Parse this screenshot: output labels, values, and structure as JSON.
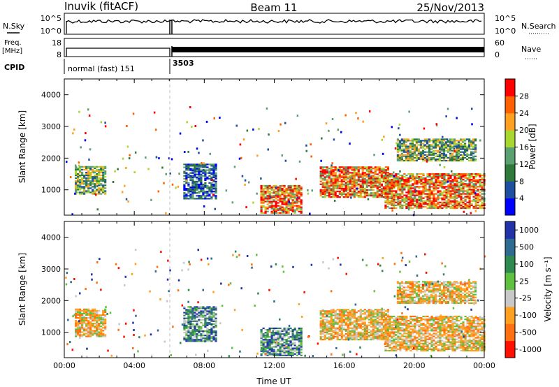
{
  "header": {
    "station": "Inuvik (fitACF)",
    "beam": "Beam 11",
    "date": "25/Nov/2013"
  },
  "top_panels": {
    "sky_label": "N.Sky",
    "search_label": "N.Search",
    "sky_ticks": [
      "10^5",
      "10^0"
    ],
    "search_ticks": [
      "10^5",
      "10^0"
    ],
    "freq_label": "Freq.",
    "freq_unit": "[MHz]",
    "freq_ticks": [
      "18",
      "8"
    ],
    "nave_label": "Nave",
    "nave_ticks": [
      "60",
      "0"
    ],
    "cpid_label": "CPID",
    "cpid_entries": [
      {
        "text": "normal (fast) 151",
        "start_hour": 0.0
      },
      {
        "text": "3503",
        "start_hour": 6.0
      }
    ]
  },
  "chart_data": [
    {
      "type": "heatmap",
      "name": "power",
      "ylabel": "Slant Range [km]",
      "ylim": [
        200,
        4500
      ],
      "yticks": [
        "1000",
        "2000",
        "3000",
        "4000"
      ],
      "colorbar": {
        "label": "Power [dB]",
        "ticks": [
          "4",
          "8",
          "12",
          "16",
          "20",
          "24",
          "28"
        ],
        "colors": [
          "#0000ff",
          "#1f4fa0",
          "#2f7a3a",
          "#5aa070",
          "#a8d830",
          "#ffa020",
          "#ff6000",
          "#ff0000"
        ]
      },
      "echo_regions": [
        {
          "t0": 0.6,
          "t1": 2.4,
          "r0": 850,
          "r1": 1750,
          "level": "mid"
        },
        {
          "t0": 6.8,
          "t1": 8.7,
          "r0": 700,
          "r1": 1800,
          "level": "low"
        },
        {
          "t0": 11.2,
          "t1": 13.5,
          "r0": 250,
          "r1": 1150,
          "level": "high"
        },
        {
          "t0": 14.6,
          "t1": 18.5,
          "r0": 750,
          "r1": 1700,
          "level": "high"
        },
        {
          "t0": 18.3,
          "t1": 24.0,
          "r0": 400,
          "r1": 1500,
          "level": "high"
        },
        {
          "t0": 19.0,
          "t1": 23.5,
          "r0": 1900,
          "r1": 2600,
          "level": "mid"
        }
      ]
    },
    {
      "type": "heatmap",
      "name": "velocity",
      "xlabel": "Time UT",
      "ylabel": "Slant Range [km]",
      "xlim": [
        0,
        24
      ],
      "xticks": [
        "00:00",
        "04:00",
        "08:00",
        "12:00",
        "16:00",
        "20:00",
        "00:00"
      ],
      "ylim": [
        200,
        4500
      ],
      "yticks": [
        "1000",
        "2000",
        "3000",
        "4000"
      ],
      "colorbar": {
        "label": "Velocity [m s⁻¹]",
        "ticks": [
          "1000",
          "500",
          "100",
          "25",
          "-25",
          "-100",
          "-500",
          "-1000"
        ],
        "colors": [
          "#2233aa",
          "#2f6a90",
          "#2f8a50",
          "#60c040",
          "#c8c8c8",
          "#ffa020",
          "#ff7010",
          "#ff1000"
        ]
      },
      "echo_regions": [
        {
          "t0": 0.6,
          "t1": 2.4,
          "r0": 850,
          "r1": 1750,
          "level": "neg"
        },
        {
          "t0": 6.8,
          "t1": 8.7,
          "r0": 700,
          "r1": 1800,
          "level": "pos"
        },
        {
          "t0": 11.2,
          "t1": 13.5,
          "r0": 250,
          "r1": 1150,
          "level": "pos"
        },
        {
          "t0": 14.6,
          "t1": 18.5,
          "r0": 750,
          "r1": 1700,
          "level": "neg"
        },
        {
          "t0": 18.3,
          "t1": 24.0,
          "r0": 400,
          "r1": 1500,
          "level": "neg"
        },
        {
          "t0": 19.0,
          "t1": 23.5,
          "r0": 1900,
          "r1": 2600,
          "level": "neg"
        }
      ]
    }
  ]
}
